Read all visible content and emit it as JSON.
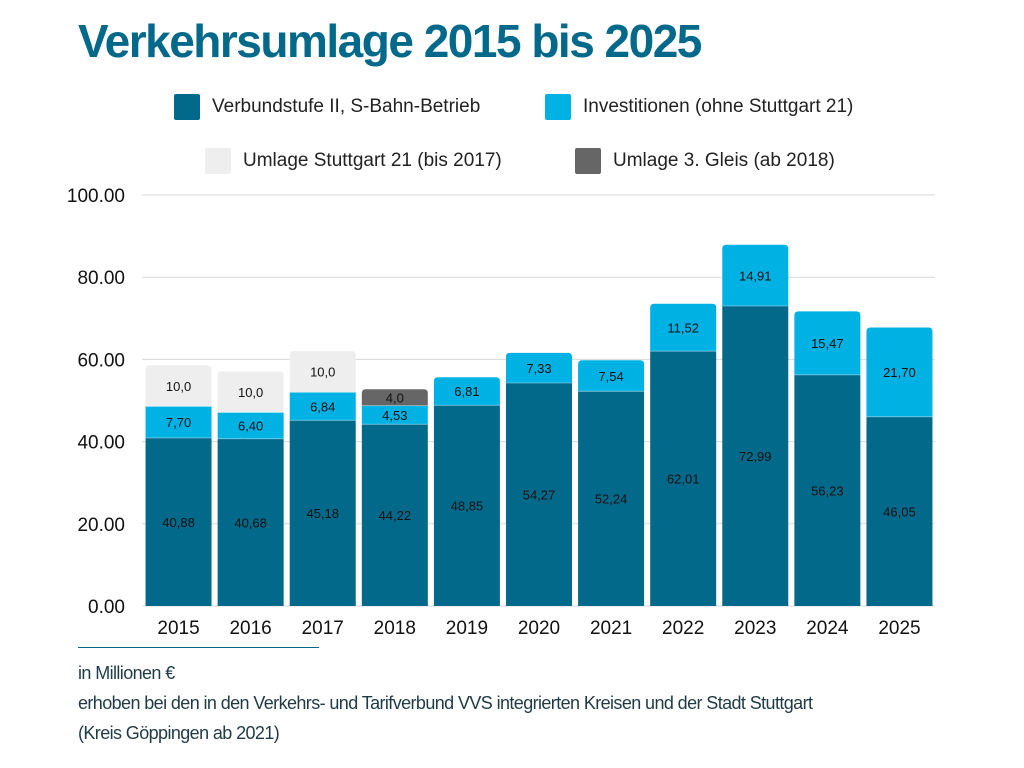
{
  "title": "Verkehrsumlage 2015 bis 2025",
  "colors": {
    "verbund": "#03698b",
    "invest": "#00b1e4",
    "s21": "#eeeeee",
    "gleis": "#666666",
    "title": "#03698b",
    "grid": "#d9d9d9"
  },
  "legend": [
    {
      "key": "verbund",
      "label": "Verbundstufe II, S-Bahn-Betrieb"
    },
    {
      "key": "invest",
      "label": "Investitionen (ohne Stuttgart 21)"
    },
    {
      "key": "s21",
      "label": "Umlage Stuttgart 21 (bis 2017)"
    },
    {
      "key": "gleis",
      "label": "Umlage 3. Gleis (ab 2018)"
    }
  ],
  "notes": {
    "unit": "in Millionen €",
    "line1": "erhoben bei den in den Verkehrs- und Tarifverbund VVS integrierten Kreisen und der Stadt Stuttgart",
    "line2": "(Kreis Göppingen ab 2021)"
  },
  "chart_data": {
    "type": "bar",
    "stacked": true,
    "title": "Verkehrsumlage 2015 bis 2025",
    "xlabel": "",
    "ylabel": "",
    "ylim": [
      0,
      100
    ],
    "yticks": [
      "0.00",
      "20.00",
      "40.00",
      "60.00",
      "80.00",
      "100.00"
    ],
    "ytick_values": [
      0,
      20,
      40,
      60,
      80,
      100
    ],
    "grid": true,
    "legend_position": "top",
    "categories": [
      "2015",
      "2016",
      "2017",
      "2018",
      "2019",
      "2020",
      "2021",
      "2022",
      "2023",
      "2024",
      "2025"
    ],
    "series": [
      {
        "key": "verbund",
        "name": "Verbundstufe II, S-Bahn-Betrieb",
        "values": [
          40.88,
          40.68,
          45.18,
          44.22,
          48.85,
          54.27,
          52.24,
          62.01,
          72.99,
          56.23,
          46.05
        ],
        "labels": [
          "40,88",
          "40,68",
          "45,18",
          "44,22",
          "48,85",
          "54,27",
          "52,24",
          "62,01",
          "72,99",
          "56,23",
          "46,05"
        ]
      },
      {
        "key": "invest",
        "name": "Investitionen (ohne Stuttgart 21)",
        "values": [
          7.7,
          6.4,
          6.84,
          4.53,
          6.81,
          7.33,
          7.54,
          11.52,
          14.91,
          15.47,
          21.7
        ],
        "labels": [
          "7,70",
          "6,40",
          "6,84",
          "4,53",
          "6,81",
          "7,33",
          "7,54",
          "11,52",
          "14,91",
          "15,47",
          "21,70"
        ]
      },
      {
        "key": "s21",
        "name": "Umlage Stuttgart 21 (bis 2017)",
        "values": [
          10.0,
          10.0,
          10.0,
          0,
          0,
          0,
          0,
          0,
          0,
          0,
          0
        ],
        "labels": [
          "10,0",
          "10,0",
          "10,0",
          "",
          "",
          "",
          "",
          "",
          "",
          "",
          ""
        ]
      },
      {
        "key": "gleis",
        "name": "Umlage 3. Gleis (ab 2018)",
        "values": [
          0,
          0,
          0,
          4.0,
          0,
          0,
          0,
          0,
          0,
          0,
          0
        ],
        "labels": [
          "",
          "",
          "",
          "4,0",
          "",
          "",
          "",
          "",
          "",
          "",
          ""
        ]
      }
    ]
  }
}
